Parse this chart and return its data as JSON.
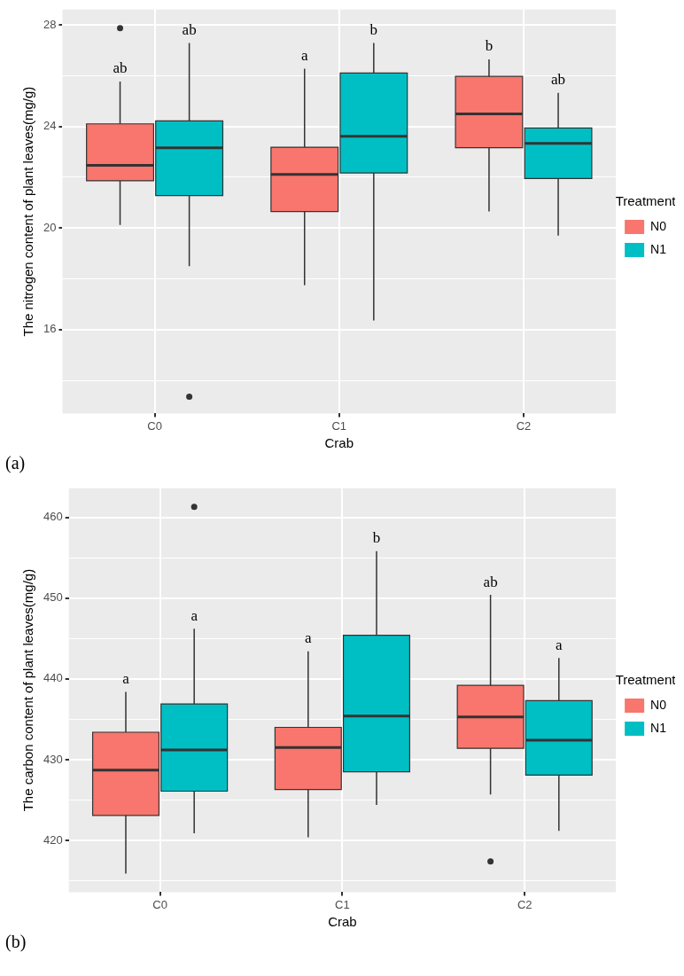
{
  "chart_data": [
    {
      "type": "box",
      "xlabel": "Crab",
      "ylabel": "The nitrogen content of plant leaves(mg/g)",
      "legend_title": "Treatment",
      "legend": "right",
      "grid": true,
      "categories": [
        "C0",
        "C1",
        "C2"
      ],
      "ylim": [
        12.7,
        28.6
      ],
      "yticks": [
        {
          "value": 14,
          "label": null
        },
        16,
        {
          "value": 18,
          "label": null
        },
        20,
        {
          "value": 22,
          "label": null
        },
        24,
        {
          "value": 26,
          "label": null
        },
        28
      ],
      "series": [
        {
          "name": "N0",
          "color": "#f8766d",
          "boxes": [
            {
              "low": 20.12,
              "q1": 21.86,
              "median": 22.47,
              "q3": 24.1,
              "high": 25.77,
              "outliers": [
                27.87
              ]
            },
            {
              "low": 17.75,
              "q1": 20.65,
              "median": 22.11,
              "q3": 23.18,
              "high": 26.27
            },
            {
              "low": 20.65,
              "q1": 23.16,
              "median": 24.49,
              "q3": 25.97,
              "high": 26.64
            }
          ]
        },
        {
          "name": "N1",
          "color": "#00bfc4",
          "boxes": [
            {
              "low": 18.5,
              "q1": 21.28,
              "median": 23.16,
              "q3": 24.22,
              "high": 27.28,
              "outliers": [
                13.36
              ]
            },
            {
              "low": 16.36,
              "q1": 22.17,
              "median": 23.61,
              "q3": 26.1,
              "high": 27.28
            },
            {
              "low": 19.7,
              "q1": 21.95,
              "median": 23.33,
              "q3": 23.94,
              "high": 25.32
            }
          ]
        }
      ],
      "annotations": [
        "ab",
        "ab",
        "a",
        "b",
        "b",
        "ab",
        "(a)"
      ]
    },
    {
      "type": "box",
      "xlabel": "Crab",
      "ylabel": "The carbon content of plant leaves(mg/g)",
      "legend_title": "Treatment",
      "legend": "right",
      "grid": true,
      "categories": [
        "C0",
        "C1",
        "C2"
      ],
      "ylim": [
        413.6,
        463.6
      ],
      "yticks": [
        {
          "value": 415,
          "label": null
        },
        420,
        {
          "value": 425,
          "label": null
        },
        430,
        {
          "value": 435,
          "label": null
        },
        440,
        {
          "value": 445,
          "label": null
        },
        450,
        {
          "value": 455,
          "label": null
        },
        460
      ],
      "series": [
        {
          "name": "N0",
          "color": "#f8766d",
          "boxes": [
            {
              "low": 415.9,
              "q1": 423.1,
              "median": 428.7,
              "q3": 433.4,
              "high": 438.4
            },
            {
              "low": 420.4,
              "q1": 426.3,
              "median": 431.5,
              "q3": 434.0,
              "high": 443.4
            },
            {
              "low": 425.7,
              "q1": 431.4,
              "median": 435.3,
              "q3": 439.2,
              "high": 450.4,
              "outliers": [
                417.4
              ]
            }
          ]
        },
        {
          "name": "N1",
          "color": "#00bfc4",
          "boxes": [
            {
              "low": 420.9,
              "q1": 426.1,
              "median": 431.2,
              "q3": 436.9,
              "high": 446.2,
              "outliers": [
                461.3
              ]
            },
            {
              "low": 424.4,
              "q1": 428.5,
              "median": 435.4,
              "q3": 445.4,
              "high": 455.8
            },
            {
              "low": 421.2,
              "q1": 428.1,
              "median": 432.4,
              "q3": 437.3,
              "high": 442.6
            }
          ]
        }
      ],
      "annotations": [
        "a",
        "a",
        "a",
        "b",
        "ab",
        "a",
        "(b)"
      ]
    }
  ]
}
